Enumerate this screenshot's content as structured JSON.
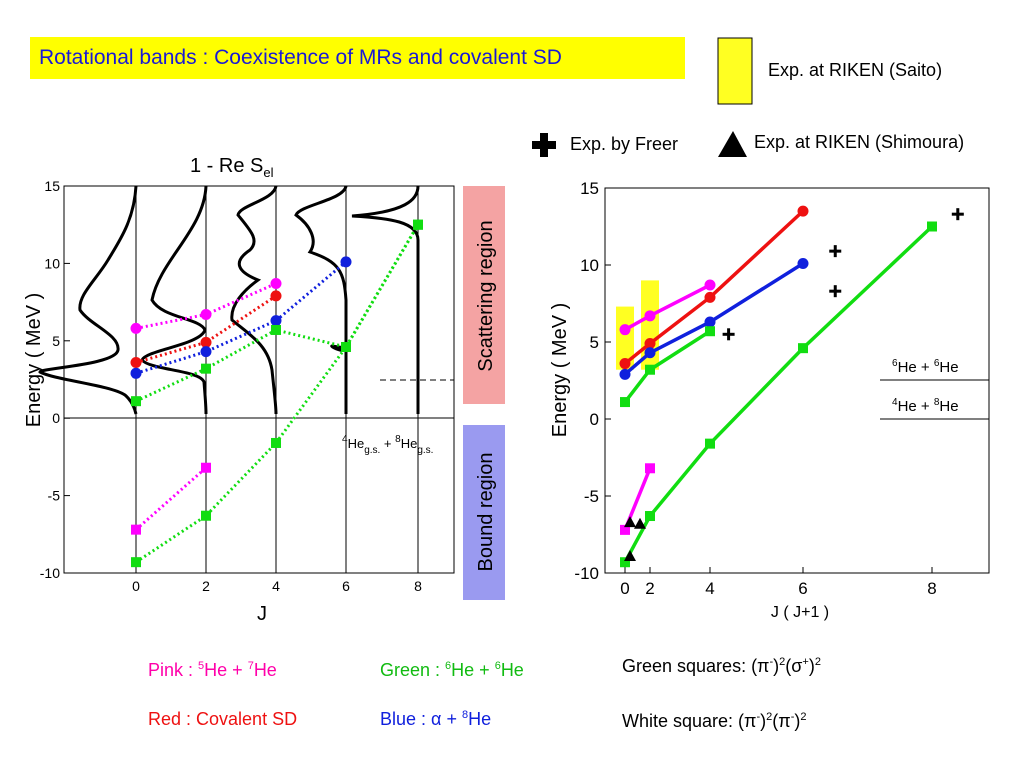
{
  "title": "Rotational bands : Coexistence of MRs and covalent SD",
  "legend_top": {
    "saito": "Exp. at RIKEN (Saito)",
    "freer": "Exp. by Freer",
    "shimoura": "Exp. at RIKEN (Shimoura)"
  },
  "colors": {
    "pink": "#ff00ff",
    "red": "#ee1111",
    "blue": "#1020dd",
    "green": "#11dd11",
    "yellow": "#ffff22",
    "scattering": "#f4a3a3",
    "bound": "#9a9af0",
    "banner": "#ffff00"
  },
  "left_panel": {
    "title_main": "1 - Re S",
    "title_sub": "el",
    "ylabel": "Energy ( MeV )",
    "xlabel": "J",
    "scattering_label": "Scattering region",
    "bound_label": "Bound region",
    "threshold_pre": "4",
    "threshold_mid1": "He",
    "threshold_sub1": "g.s.",
    "threshold_plus": " + ",
    "threshold_pre2": "8",
    "threshold_mid2": "He",
    "threshold_sub2": "g.s.",
    "xticks": [
      "0",
      "2",
      "4",
      "6",
      "8"
    ],
    "yticks": [
      "15",
      "10",
      "5",
      "0",
      "-5",
      "-10"
    ]
  },
  "right_panel": {
    "ylabel": "Energy ( MeV )",
    "xlabel": "J ( J+1 )",
    "xticks": [
      "0",
      "2",
      "4",
      "6",
      "8"
    ],
    "yticks": [
      "15",
      "10",
      "5",
      "0",
      "-5",
      "-10"
    ],
    "threshold_he6": "He + ",
    "threshold_he4": "He + ",
    "th1_a": "6",
    "th1_b": "He + ",
    "th1_c": "6",
    "th1_d": "He",
    "th2_a": "4",
    "th2_b": "He + ",
    "th2_c": "8",
    "th2_d": "He"
  },
  "footer": {
    "pink_a": "Pink : ",
    "pink_b": "5",
    "pink_c": "He + ",
    "pink_d": "7",
    "pink_e": "He",
    "red": "Red : Covalent SD",
    "green_a": "Green : ",
    "green_b": "6",
    "green_c": "He + ",
    "green_d": "6",
    "green_e": "He",
    "blue_a": "Blue : ",
    "blue_b": "α",
    "blue_c": " + ",
    "blue_d": "8",
    "blue_e": "He",
    "gsq_a": "Green  squares: (π",
    "gsq_b": "-",
    "gsq_c": ")",
    "gsq_d": "2",
    "gsq_e": "(σ",
    "gsq_f": "+",
    "gsq_g": ")",
    "gsq_h": "2",
    "wsq_a": "White square: (π",
    "wsq_b": "-",
    "wsq_c": ")",
    "wsq_d": "2",
    "wsq_e": "(π",
    "wsq_f": "-",
    "wsq_g": ")",
    "wsq_h": "2"
  },
  "chart_data": [
    {
      "type": "line",
      "panel": "left",
      "xlabel": "J",
      "ylabel": "Energy ( MeV )",
      "ylim": [
        -10,
        15
      ],
      "xticks": [
        0,
        2,
        4,
        6,
        8
      ],
      "series": [
        {
          "color": "pink",
          "x": [
            0,
            2,
            4
          ],
          "y": [
            5.8,
            6.7,
            8.7
          ]
        },
        {
          "color": "red",
          "x": [
            0,
            2,
            4
          ],
          "y": [
            3.6,
            4.9,
            7.9
          ]
        },
        {
          "color": "blue",
          "x": [
            0,
            2,
            4,
            6
          ],
          "y": [
            2.9,
            4.3,
            6.3,
            10.1
          ]
        },
        {
          "color": "green",
          "x": [
            0,
            2,
            4,
            6,
            8
          ],
          "y": [
            1.1,
            3.2,
            5.7,
            4.6,
            12.5
          ]
        },
        {
          "color": "pink",
          "x": [
            0,
            2
          ],
          "y": [
            -7.2,
            -3.2
          ]
        },
        {
          "color": "green",
          "x": [
            0,
            2,
            4,
            6,
            8
          ],
          "y": [
            -9.3,
            -6.3,
            -1.6,
            4.6,
            12.5
          ]
        }
      ]
    },
    {
      "type": "line",
      "panel": "right",
      "xlabel": "J ( J+1 )",
      "ylabel": "Energy ( MeV )",
      "ylim": [
        -10,
        15
      ],
      "xticks": [
        0,
        2,
        4,
        6,
        8
      ],
      "series": [
        {
          "color": "pink",
          "x": [
            0,
            2,
            4
          ],
          "y": [
            5.8,
            6.7,
            8.7
          ]
        },
        {
          "color": "red",
          "x": [
            0,
            2,
            4,
            6
          ],
          "y": [
            3.6,
            4.9,
            7.9,
            13.5
          ]
        },
        {
          "color": "blue",
          "x": [
            0,
            2,
            4,
            6
          ],
          "y": [
            2.9,
            4.3,
            6.3,
            10.1
          ]
        },
        {
          "color": "green",
          "x": [
            0,
            2,
            4
          ],
          "y": [
            1.1,
            3.2,
            5.7
          ]
        },
        {
          "color": "pink",
          "x": [
            0,
            2
          ],
          "y": [
            -7.2,
            -3.2
          ]
        },
        {
          "color": "green",
          "x": [
            0,
            2,
            4,
            6,
            8
          ],
          "y": [
            -9.3,
            -6.3,
            -1.6,
            4.6,
            12.5
          ]
        }
      ],
      "freer_points": [
        [
          4.4,
          5.5
        ],
        [
          6.5,
          8.3
        ],
        [
          6.5,
          10.9
        ],
        [
          8.4,
          13.3
        ]
      ],
      "shimoura_points": [
        [
          0.4,
          -8.9
        ],
        [
          0.4,
          -6.7
        ],
        [
          1.2,
          -6.8
        ]
      ],
      "saito_bands": [
        [
          0,
          3.2,
          7.3
        ],
        [
          2,
          3.2,
          9
        ]
      ]
    }
  ]
}
